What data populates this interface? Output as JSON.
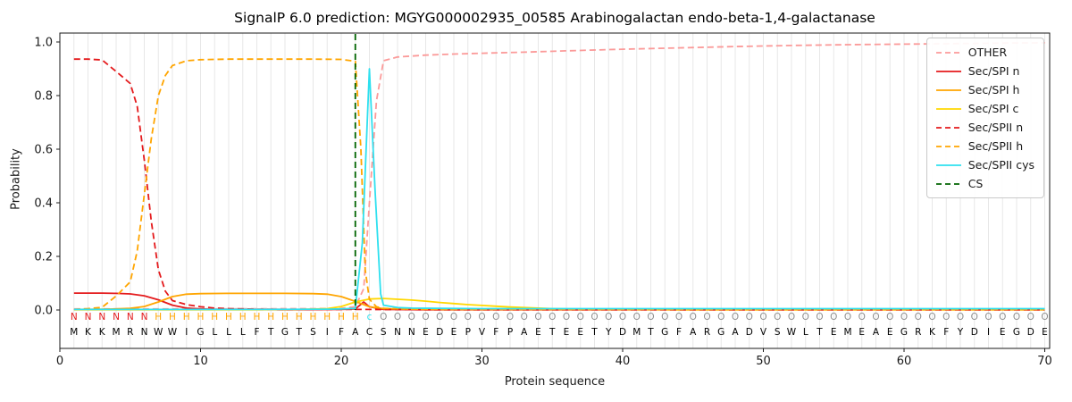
{
  "chart_data": {
    "type": "line",
    "title": "SignalP 6.0 prediction: MGYG000002935_00585 Arabinogalactan endo-beta-1,4-galactanase",
    "xlabel": "Protein sequence",
    "ylabel": "Probability",
    "xlim": [
      0,
      70.3
    ],
    "ylim": [
      -0.14,
      1.03
    ],
    "grid": true,
    "grid_color": "#e7e7e7",
    "axis_color": "#1a1a1a",
    "xticks": [
      {
        "v": 0,
        "label": "0"
      },
      {
        "v": 10,
        "label": "10"
      },
      {
        "v": 20,
        "label": "20"
      },
      {
        "v": 30,
        "label": "30"
      },
      {
        "v": 40,
        "label": "40"
      },
      {
        "v": 50,
        "label": "50"
      },
      {
        "v": 60,
        "label": "60"
      },
      {
        "v": 70,
        "label": "70"
      }
    ],
    "yticks": [
      {
        "v": 0.0,
        "label": "0.0"
      },
      {
        "v": 0.2,
        "label": "0.2"
      },
      {
        "v": 0.4,
        "label": "0.4"
      },
      {
        "v": 0.6,
        "label": "0.6"
      },
      {
        "v": 0.8,
        "label": "0.8"
      },
      {
        "v": 1.0,
        "label": "1.0"
      }
    ],
    "cs": {
      "position": 21,
      "color": "#006400",
      "label": "CS"
    },
    "sequence": "MKKMRNWWIGLLLFTGTSIFACSNNEDEPVFPAETEETYDMTGFARGADVSWLTEMEAEGRKFYDIEGDE",
    "labels": "NNNNNNHHHHHHHHHHHHHHHcOOOOOOOOOOOOOOOOOOOOOOOOOOOOOOOOOOOOOOOOOOOOOOOO",
    "label_colors": {
      "N": "#e41a1c",
      "H": "#ffa500",
      "c": "#2ee0ef",
      "O": "#8f8f8f"
    },
    "residue_color": "#000000",
    "legend_position": "upper right",
    "legend": [
      {
        "label": "OTHER",
        "color": "#fb9a99",
        "dash": true
      },
      {
        "label": "Sec/SPI n",
        "color": "#e41a1c",
        "dash": false
      },
      {
        "label": "Sec/SPI h",
        "color": "#ffa500",
        "dash": false
      },
      {
        "label": "Sec/SPI c",
        "color": "#ffd700",
        "dash": false
      },
      {
        "label": "Sec/SPII n",
        "color": "#e41a1c",
        "dash": true
      },
      {
        "label": "Sec/SPII h",
        "color": "#ffa500",
        "dash": true
      },
      {
        "label": "Sec/SPII cys",
        "color": "#2ee0ef",
        "dash": false
      },
      {
        "label": "CS",
        "color": "#006400",
        "dash": true
      }
    ],
    "series": [
      {
        "name": "OTHER",
        "color": "#fb9a99",
        "dash": true,
        "points": [
          [
            1,
            0.004
          ],
          [
            10,
            0.004
          ],
          [
            18,
            0.005
          ],
          [
            20,
            0.006
          ],
          [
            21,
            0.012
          ],
          [
            21.6,
            0.08
          ],
          [
            22,
            0.4
          ],
          [
            22.5,
            0.78
          ],
          [
            23,
            0.93
          ],
          [
            24,
            0.944
          ],
          [
            26,
            0.951
          ],
          [
            28,
            0.955
          ],
          [
            30,
            0.958
          ],
          [
            33,
            0.962
          ],
          [
            36,
            0.967
          ],
          [
            40,
            0.973
          ],
          [
            44,
            0.978
          ],
          [
            48,
            0.983
          ],
          [
            52,
            0.987
          ],
          [
            56,
            0.99
          ],
          [
            60,
            0.992
          ],
          [
            64,
            0.994
          ],
          [
            67,
            0.996
          ],
          [
            70,
            0.997
          ]
        ]
      },
      {
        "name": "Sec/SPI n",
        "color": "#e41a1c",
        "dash": false,
        "points": [
          [
            1,
            0.063
          ],
          [
            2,
            0.063
          ],
          [
            3,
            0.063
          ],
          [
            4,
            0.062
          ],
          [
            5,
            0.06
          ],
          [
            6,
            0.053
          ],
          [
            7,
            0.038
          ],
          [
            8,
            0.018
          ],
          [
            9,
            0.007
          ],
          [
            10,
            0.004
          ],
          [
            11,
            0.002
          ],
          [
            13,
            0.002
          ],
          [
            16,
            0.001
          ],
          [
            20,
            0.002
          ],
          [
            21,
            0.004
          ],
          [
            21.6,
            0.03
          ],
          [
            22,
            0.012
          ],
          [
            23,
            0.002
          ],
          [
            26,
            0.001
          ],
          [
            40,
            0.001
          ],
          [
            70,
            0.001
          ]
        ]
      },
      {
        "name": "Sec/SPI h",
        "color": "#ffa500",
        "dash": false,
        "points": [
          [
            1,
            0.002
          ],
          [
            3,
            0.003
          ],
          [
            4,
            0.004
          ],
          [
            5,
            0.006
          ],
          [
            6,
            0.013
          ],
          [
            7,
            0.03
          ],
          [
            8,
            0.05
          ],
          [
            9,
            0.059
          ],
          [
            10,
            0.061
          ],
          [
            12,
            0.062
          ],
          [
            14,
            0.062
          ],
          [
            16,
            0.062
          ],
          [
            18,
            0.061
          ],
          [
            19,
            0.059
          ],
          [
            20,
            0.05
          ],
          [
            21,
            0.032
          ],
          [
            22,
            0.012
          ],
          [
            23,
            0.005
          ],
          [
            25,
            0.003
          ],
          [
            28,
            0.002
          ],
          [
            40,
            0.002
          ],
          [
            70,
            0.002
          ]
        ]
      },
      {
        "name": "Sec/SPI c",
        "color": "#ffd700",
        "dash": false,
        "points": [
          [
            1,
            0.001
          ],
          [
            14,
            0.001
          ],
          [
            17,
            0.002
          ],
          [
            19,
            0.005
          ],
          [
            20,
            0.013
          ],
          [
            21,
            0.03
          ],
          [
            22,
            0.041
          ],
          [
            23,
            0.043
          ],
          [
            24,
            0.04
          ],
          [
            25,
            0.037
          ],
          [
            26,
            0.033
          ],
          [
            27,
            0.028
          ],
          [
            28,
            0.024
          ],
          [
            29,
            0.02
          ],
          [
            30,
            0.017
          ],
          [
            31,
            0.014
          ],
          [
            32,
            0.011
          ],
          [
            33,
            0.009
          ],
          [
            34,
            0.007
          ],
          [
            35,
            0.005
          ],
          [
            36,
            0.004
          ],
          [
            38,
            0.003
          ],
          [
            40,
            0.002
          ],
          [
            44,
            0.001
          ],
          [
            70,
            0.001
          ]
        ]
      },
      {
        "name": "Sec/SPII n",
        "color": "#e41a1c",
        "dash": true,
        "points": [
          [
            1,
            0.936
          ],
          [
            2,
            0.936
          ],
          [
            3,
            0.933
          ],
          [
            4,
            0.89
          ],
          [
            5,
            0.845
          ],
          [
            5.5,
            0.76
          ],
          [
            6,
            0.56
          ],
          [
            6.5,
            0.33
          ],
          [
            7,
            0.15
          ],
          [
            7.5,
            0.07
          ],
          [
            8,
            0.035
          ],
          [
            9,
            0.02
          ],
          [
            10,
            0.012
          ],
          [
            11,
            0.007
          ],
          [
            12,
            0.005
          ],
          [
            14,
            0.003
          ],
          [
            16,
            0.002
          ],
          [
            20,
            0.002
          ],
          [
            22,
            0.002
          ],
          [
            26,
            0.001
          ],
          [
            40,
            0.001
          ],
          [
            70,
            0.001
          ]
        ]
      },
      {
        "name": "Sec/SPII h",
        "color": "#ffa500",
        "dash": true,
        "points": [
          [
            1,
            0.002
          ],
          [
            2,
            0.005
          ],
          [
            3,
            0.01
          ],
          [
            4,
            0.052
          ],
          [
            5,
            0.105
          ],
          [
            5.5,
            0.22
          ],
          [
            6,
            0.43
          ],
          [
            6.5,
            0.64
          ],
          [
            7,
            0.8
          ],
          [
            7.5,
            0.875
          ],
          [
            8,
            0.912
          ],
          [
            9,
            0.93
          ],
          [
            10,
            0.934
          ],
          [
            12,
            0.936
          ],
          [
            14,
            0.936
          ],
          [
            16,
            0.936
          ],
          [
            18,
            0.936
          ],
          [
            20,
            0.935
          ],
          [
            21,
            0.928
          ],
          [
            21.4,
            0.6
          ],
          [
            21.7,
            0.15
          ],
          [
            22,
            0.04
          ],
          [
            22.5,
            0.012
          ],
          [
            23,
            0.006
          ],
          [
            25,
            0.003
          ],
          [
            28,
            0.002
          ],
          [
            40,
            0.002
          ],
          [
            70,
            0.002
          ]
        ]
      },
      {
        "name": "Sec/SPII cys",
        "color": "#2ee0ef",
        "dash": false,
        "points": [
          [
            1,
            0.002
          ],
          [
            8,
            0.002
          ],
          [
            14,
            0.002
          ],
          [
            19,
            0.003
          ],
          [
            20,
            0.004
          ],
          [
            21,
            0.006
          ],
          [
            21.5,
            0.25
          ],
          [
            22,
            0.9
          ],
          [
            22.4,
            0.45
          ],
          [
            22.8,
            0.06
          ],
          [
            23,
            0.018
          ],
          [
            24,
            0.009
          ],
          [
            25,
            0.007
          ],
          [
            27,
            0.006
          ],
          [
            30,
            0.005
          ],
          [
            35,
            0.005
          ],
          [
            40,
            0.005
          ],
          [
            45,
            0.005
          ],
          [
            50,
            0.005
          ],
          [
            55,
            0.005
          ],
          [
            60,
            0.005
          ],
          [
            65,
            0.005
          ],
          [
            70,
            0.005
          ]
        ]
      }
    ]
  }
}
